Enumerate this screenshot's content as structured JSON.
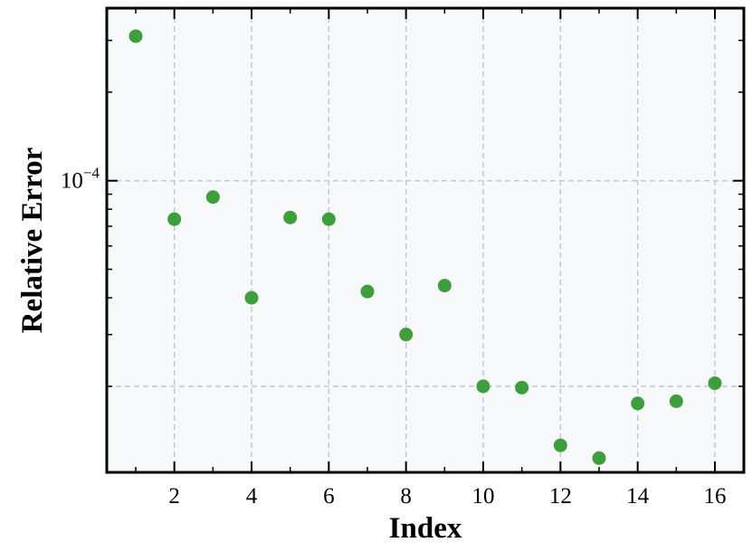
{
  "chart_data": {
    "type": "scatter",
    "title": "",
    "xlabel": "Index",
    "ylabel": "Relative Error",
    "x": [
      1,
      2,
      3,
      4,
      5,
      6,
      7,
      8,
      9,
      10,
      11,
      12,
      13,
      14,
      15,
      16
    ],
    "y": [
      0.00031,
      7.4e-05,
      8.8e-05,
      4e-05,
      7.5e-05,
      7.4e-05,
      4.2e-05,
      3e-05,
      4.4e-05,
      2e-05,
      1.98e-05,
      1.26e-05,
      1.14e-05,
      1.75e-05,
      1.78e-05,
      2.05e-05
    ],
    "xlim": [
      0.25,
      16.75
    ],
    "ylim": [
      1.02e-05,
      0.000386
    ],
    "yscale": "log",
    "xticks": [
      2,
      4,
      6,
      8,
      10,
      12,
      14,
      16
    ],
    "ytick_major": 0.0001,
    "ytick_label": "10",
    "ytick_label_exp": "−4",
    "grid": true,
    "legend": "none",
    "colors": {
      "marker": "#3c9f3c",
      "background": "#f7f8fa",
      "grid": "#c8c8c8",
      "frame": "#000000"
    }
  }
}
